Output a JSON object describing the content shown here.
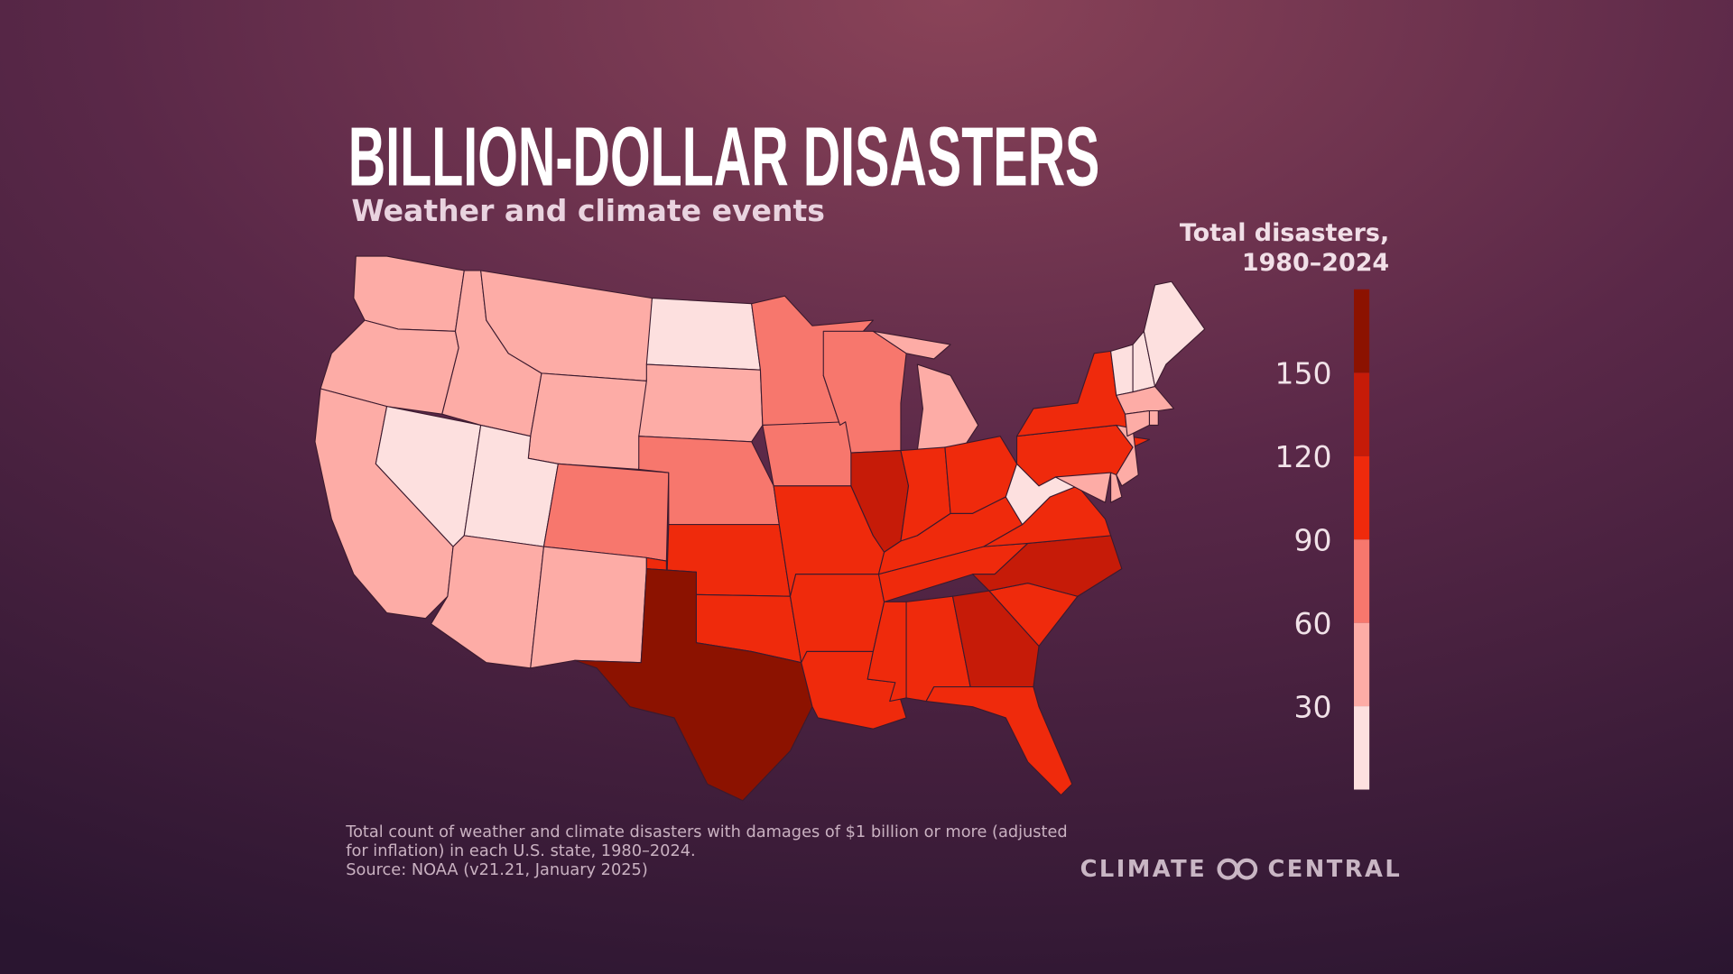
{
  "chart_data": {
    "type": "choropleth",
    "title": "BILLION-DOLLAR DISASTERS",
    "subtitle": "Weather and climate events",
    "legend_title": [
      "Total disasters,",
      "1980–2024"
    ],
    "ylim": [
      0,
      180
    ],
    "yticks": [
      30,
      60,
      90,
      120,
      150
    ],
    "colors": [
      "#fde0df",
      "#fdaca6",
      "#f7776d",
      "#ef2a0c",
      "#c61b08",
      "#8c1200"
    ],
    "values": [
      45,
      45,
      45,
      15,
      45,
      45,
      45,
      15,
      75,
      45,
      45,
      15,
      45,
      75,
      105,
      105,
      165,
      75,
      75,
      105,
      105,
      105,
      75,
      135,
      45,
      105,
      105,
      105,
      105,
      105,
      105,
      135,
      105,
      105,
      135,
      105,
      15,
      105,
      105,
      45,
      45,
      45,
      15,
      15,
      15,
      45,
      45,
      45
    ],
    "footnote": [
      "Total count of weather and climate disasters with damages of $1 billion or more (adjusted",
      "for inflation) in each U.S. state, 1980–2024.",
      "Source: NOAA (v21.21, January 2025)"
    ],
    "logo": [
      "CLIMATE",
      "CENTRAL"
    ]
  }
}
